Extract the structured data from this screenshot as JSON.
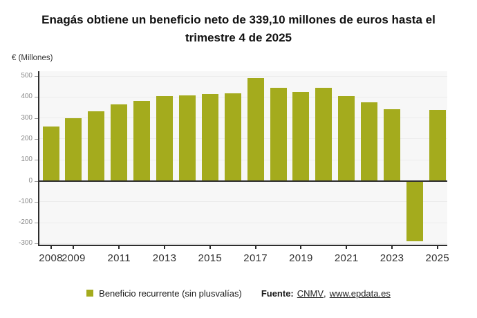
{
  "header": {
    "title_line1": "Enagás obtiene un beneficio neto de 339,10 millones de euros hasta el",
    "title_line2": "trimestre 4 de 2025"
  },
  "y_axis_unit": "€ (Millones)",
  "legend": {
    "series_label": "Beneficio recurrente (sin plusvalías)",
    "source_label": "Fuente:",
    "link_cnmv": "CNMV",
    "separator": ",",
    "link_epdata": "www.epdata.es"
  },
  "colors": {
    "bar": "#a4ab1d",
    "plot_background": "#f7f7f7",
    "gridline": "#ececec",
    "axis": "#2d2d2d",
    "y_tick_label": "#888888",
    "x_tick_label": "#333333"
  },
  "chart_data": {
    "type": "bar",
    "title": "Enagás obtiene un beneficio neto de 339,10 millones de euros hasta el trimestre 4 de 2025",
    "ylabel": "€ (Millones)",
    "xlabel": "",
    "categories": [
      "2008",
      "2009",
      "2010",
      "2011",
      "2012",
      "2013",
      "2014",
      "2015",
      "2016",
      "2017",
      "2018",
      "2019",
      "2020",
      "2021",
      "2022",
      "2023",
      "2024",
      "2025"
    ],
    "series": [
      {
        "name": "Beneficio recurrente (sin plusvalías)",
        "values": [
          259,
          298,
          333,
          365,
          380,
          403,
          407,
          413,
          417,
          491,
          443,
          423,
          444,
          404,
          376,
          343,
          -290,
          339.1
        ]
      }
    ],
    "x_tick_labels": [
      "2008",
      "2009",
      "2011",
      "2013",
      "2015",
      "2017",
      "2019",
      "2021",
      "2023",
      "2025"
    ],
    "y_ticks": [
      500,
      400,
      300,
      200,
      100,
      0,
      -100,
      -200,
      -300
    ],
    "ylim": [
      -310,
      520
    ],
    "grid": true,
    "legend_position": "bottom"
  }
}
